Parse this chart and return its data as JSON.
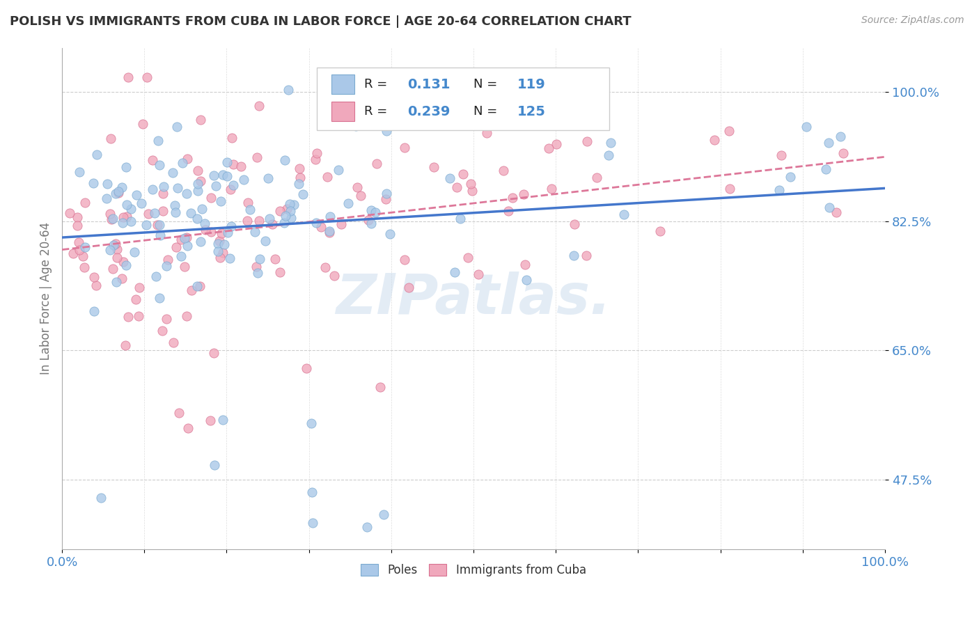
{
  "title": "POLISH VS IMMIGRANTS FROM CUBA IN LABOR FORCE | AGE 20-64 CORRELATION CHART",
  "source": "Source: ZipAtlas.com",
  "ylabel": "In Labor Force | Age 20-64",
  "xlim": [
    0.0,
    1.0
  ],
  "ylim": [
    0.38,
    1.06
  ],
  "x_tick_positions": [
    0.0,
    0.1,
    0.2,
    0.3,
    0.4,
    0.5,
    0.6,
    0.7,
    0.8,
    0.9,
    1.0
  ],
  "x_tick_labels": [
    "0.0%",
    "",
    "",
    "",
    "",
    "",
    "",
    "",
    "",
    "",
    "100.0%"
  ],
  "y_tick_positions": [
    0.475,
    0.65,
    0.825,
    1.0
  ],
  "y_tick_labels": [
    "47.5%",
    "65.0%",
    "82.5%",
    "100.0%"
  ],
  "r_poles": 0.131,
  "n_poles": 119,
  "r_cuba": 0.239,
  "n_cuba": 125,
  "color_poles": "#aac8e8",
  "color_cuba": "#f0a8bc",
  "color_poles_edge": "#7aaad0",
  "color_cuba_edge": "#d87090",
  "line_color_poles": "#4477cc",
  "line_color_cuba": "#dd7799",
  "background_color": "#ffffff",
  "title_color": "#333333",
  "axis_label_color": "#4488cc",
  "watermark_text": "ZIPatlas.",
  "seed": 42
}
